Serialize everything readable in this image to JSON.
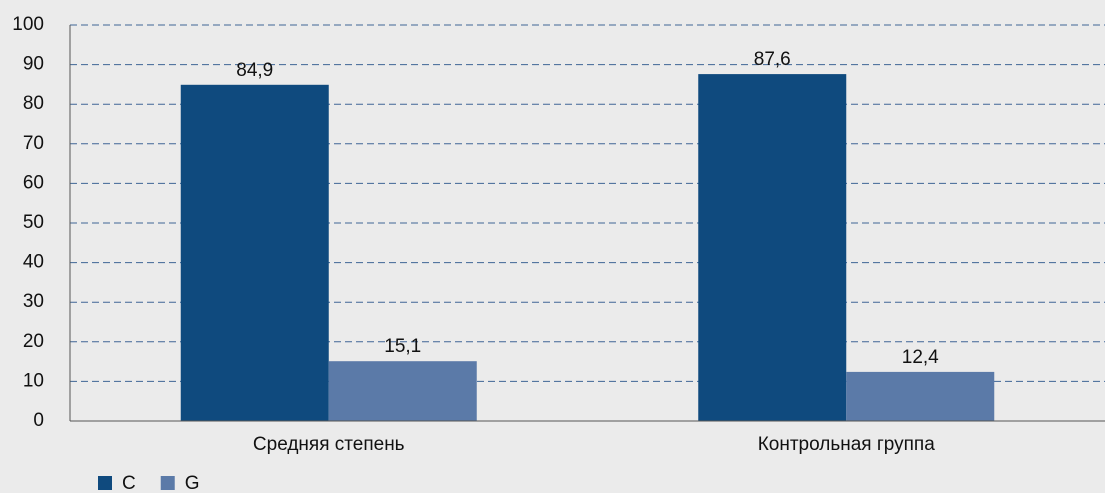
{
  "chart_data": {
    "type": "bar",
    "categories": [
      "Средняя степень",
      "Контрольная группа"
    ],
    "series": [
      {
        "name": "C",
        "color": "#0f4a7e",
        "values": [
          84.9,
          87.6
        ],
        "value_labels": [
          "84,9",
          "87,6"
        ]
      },
      {
        "name": "G",
        "color": "#5b7aa8",
        "values": [
          15.1,
          12.4
        ],
        "value_labels": [
          "15,1",
          "12,4"
        ]
      }
    ],
    "ylim": [
      0,
      100
    ],
    "yticks": [
      0,
      10,
      20,
      30,
      40,
      50,
      60,
      70,
      80,
      90,
      100
    ],
    "grid": true,
    "legend": "bottom-left"
  }
}
